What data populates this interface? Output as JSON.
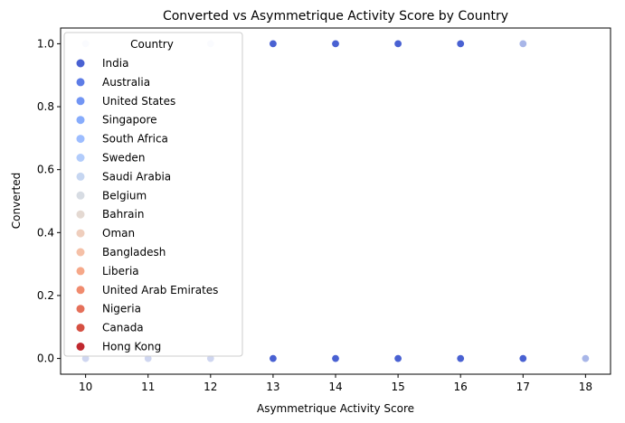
{
  "chart_data": {
    "type": "scatter",
    "title": "Converted vs Asymmetrique Activity Score by Country",
    "xlabel": "Asymmetrique Activity Score",
    "ylabel": "Converted",
    "xlim": [
      9.6,
      18.4
    ],
    "ylim": [
      -0.05,
      1.05
    ],
    "x_ticks": [
      10,
      11,
      12,
      13,
      14,
      15,
      16,
      17,
      18
    ],
    "y_ticks": [
      0.0,
      0.2,
      0.4,
      0.6,
      0.8,
      1.0
    ],
    "grid": false,
    "legend": {
      "title": "Country",
      "placement": "upper-left",
      "entries": [
        {
          "name": "India",
          "color": "#4961d2"
        },
        {
          "name": "Australia",
          "color": "#5d7ce6"
        },
        {
          "name": "United States",
          "color": "#7295f4"
        },
        {
          "name": "Singapore",
          "color": "#87acfc"
        },
        {
          "name": "South Africa",
          "color": "#9dbdff"
        },
        {
          "name": "Sweden",
          "color": "#b2ccfb"
        },
        {
          "name": "Saudi Arabia",
          "color": "#c6d6f1"
        },
        {
          "name": "Belgium",
          "color": "#d7dce3"
        },
        {
          "name": "Bahrain",
          "color": "#e4d9d2"
        },
        {
          "name": "Oman",
          "color": "#efcebd"
        },
        {
          "name": "Bangladesh",
          "color": "#f5c0a7"
        },
        {
          "name": "Liberia",
          "color": "#f6a889"
        },
        {
          "name": "United Arab Emirates",
          "color": "#f08b6e"
        },
        {
          "name": "Nigeria",
          "color": "#e5705a"
        },
        {
          "name": "Canada",
          "color": "#d55042"
        },
        {
          "name": "Hong Kong",
          "color": "#c0282f"
        }
      ]
    },
    "points": [
      {
        "x": 10,
        "y": 1,
        "color": "#e6e9f7"
      },
      {
        "x": 12,
        "y": 1,
        "color": "#e6e9f7"
      },
      {
        "x": 13,
        "y": 1,
        "color": "#4961d2"
      },
      {
        "x": 14,
        "y": 1,
        "color": "#4961d2"
      },
      {
        "x": 15,
        "y": 1,
        "color": "#4961d2"
      },
      {
        "x": 16,
        "y": 1,
        "color": "#4961d2"
      },
      {
        "x": 17,
        "y": 1,
        "color": "#a8b6e8"
      },
      {
        "x": 10,
        "y": 0,
        "color": "#cfd6f0"
      },
      {
        "x": 11,
        "y": 0,
        "color": "#cfd6f0"
      },
      {
        "x": 12,
        "y": 0,
        "color": "#cfd6f0"
      },
      {
        "x": 13,
        "y": 0,
        "color": "#4961d2"
      },
      {
        "x": 14,
        "y": 0,
        "color": "#4961d2"
      },
      {
        "x": 15,
        "y": 0,
        "color": "#4961d2"
      },
      {
        "x": 16,
        "y": 0,
        "color": "#4961d2"
      },
      {
        "x": 17,
        "y": 0,
        "color": "#4961d2"
      },
      {
        "x": 18,
        "y": 0,
        "color": "#a8b6e8"
      }
    ]
  }
}
